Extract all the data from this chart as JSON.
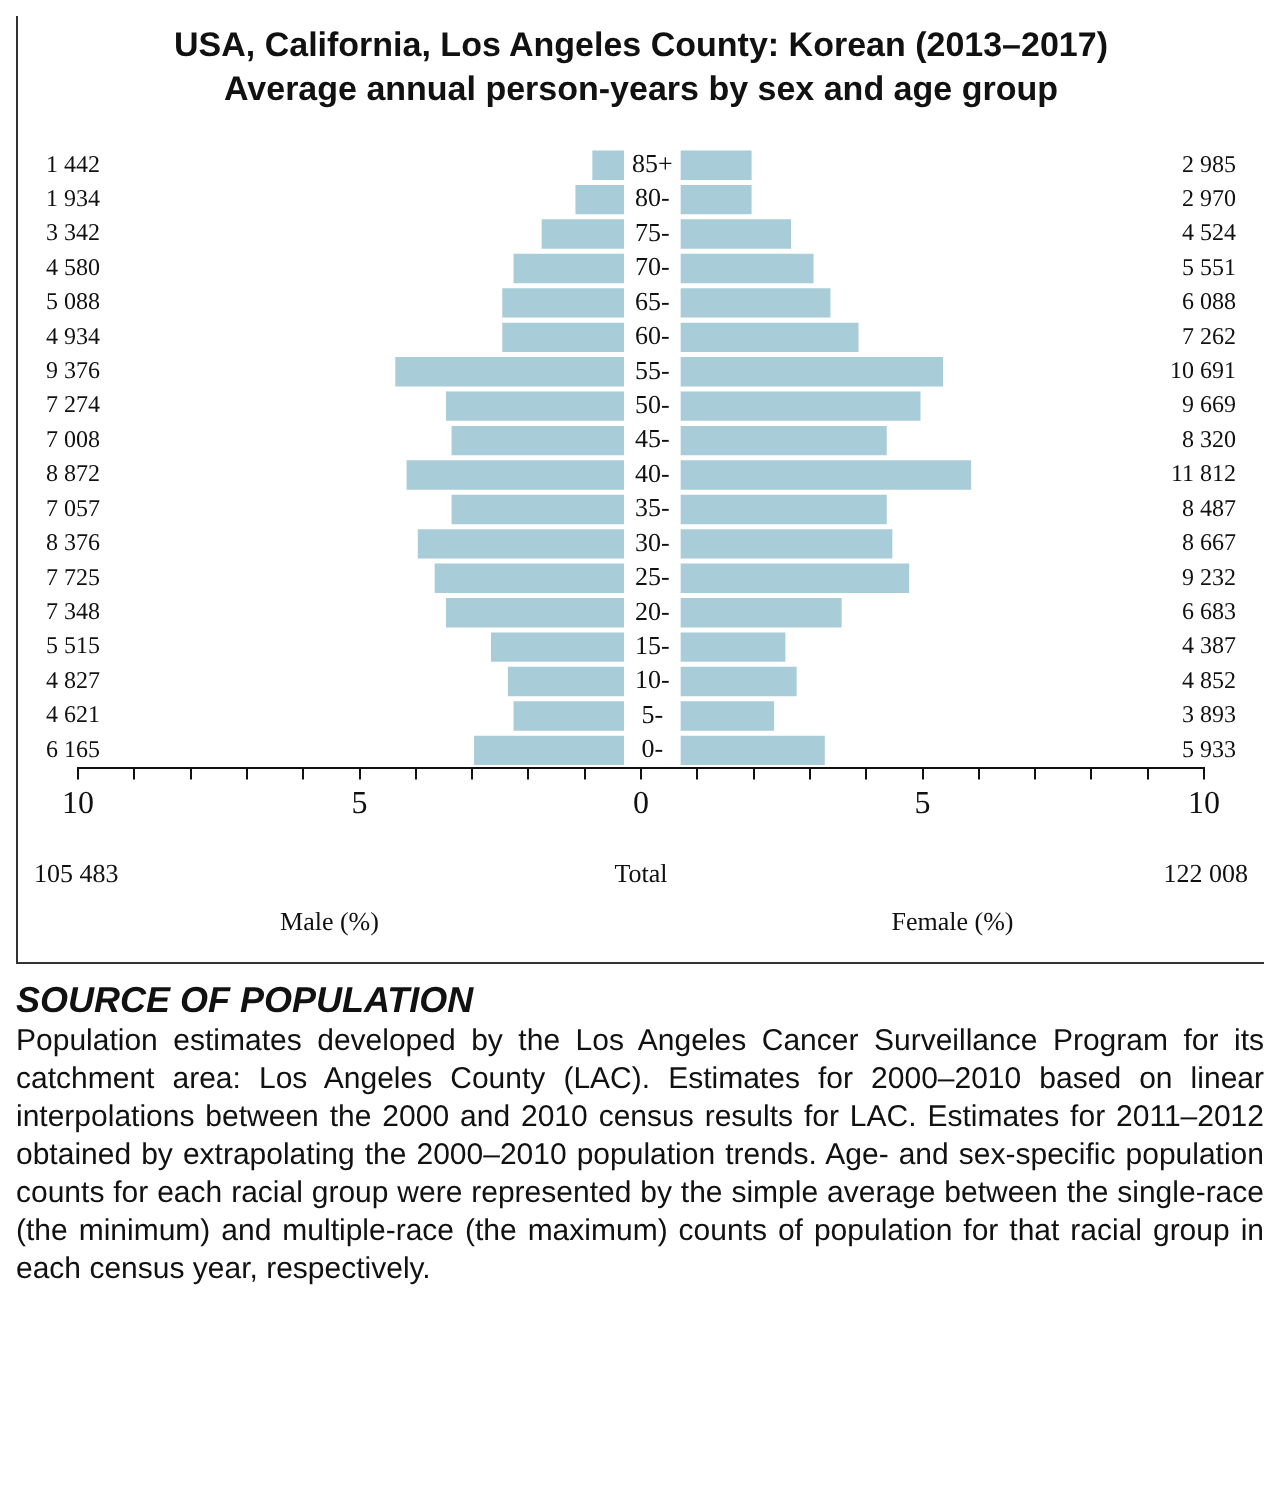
{
  "chart_data": {
    "type": "bar",
    "orientation": "horizontal",
    "title": "USA, California, Los Angeles County: Korean (2013–2017)",
    "subtitle": "Average annual person-years by sex and age group",
    "categories": [
      "85+",
      "80-",
      "75-",
      "70-",
      "65-",
      "60-",
      "55-",
      "50-",
      "45-",
      "40-",
      "35-",
      "30-",
      "25-",
      "20-",
      "15-",
      "10-",
      "5-",
      "0-"
    ],
    "series": [
      {
        "color": "#a8ccd8",
        "base": [
          -0.3,
          -0.3,
          -0.3,
          -0.3,
          -0.3,
          -0.3,
          -0.3,
          -0.3,
          -0.3,
          -0.3,
          -0.3,
          -0.3,
          -0.3,
          -0.3,
          -0.3,
          -0.3,
          -0.3,
          -0.3
        ],
        "values": [
          -0.6,
          -0.9,
          -1.5,
          -2.0,
          -2.2,
          -2.2,
          -4.1,
          -3.2,
          -3.1,
          -3.9,
          -3.1,
          -3.7,
          -3.4,
          -3.2,
          -2.4,
          -2.1,
          -2.0,
          -2.7
        ]
      },
      {
        "color": "#a8ccd8",
        "base": [
          0.7,
          0.7,
          0.7,
          0.7,
          0.7,
          0.7,
          0.7,
          0.7,
          0.7,
          0.7,
          0.7,
          0.7,
          0.7,
          0.7,
          0.7,
          0.7,
          0.7,
          0.7
        ],
        "values": [
          1.3,
          1.3,
          2.0,
          2.4,
          2.7,
          3.2,
          4.7,
          4.3,
          3.7,
          5.2,
          3.7,
          3.8,
          4.1,
          2.9,
          1.9,
          2.1,
          1.7,
          2.6
        ]
      }
    ],
    "xlim": [
      -10,
      10
    ],
    "xticks": [
      {
        "value": -10,
        "label": "10"
      },
      {
        "value": -9,
        "label": null
      },
      {
        "value": -8,
        "label": null
      },
      {
        "value": -7,
        "label": null
      },
      {
        "value": -6,
        "label": null
      },
      {
        "value": -5,
        "label": "5"
      },
      {
        "value": -4,
        "label": null
      },
      {
        "value": -3,
        "label": null
      },
      {
        "value": -2,
        "label": null
      },
      {
        "value": -1,
        "label": null
      },
      0,
      {
        "value": 1,
        "label": null
      },
      {
        "value": 2,
        "label": null
      },
      {
        "value": 3,
        "label": null
      },
      {
        "value": 4,
        "label": null
      },
      5,
      {
        "value": 6,
        "label": null
      },
      {
        "value": 7,
        "label": null
      },
      {
        "value": 8,
        "label": null
      },
      {
        "value": 9,
        "label": null
      },
      10
    ],
    "annotations": [
      "1 442",
      "1 934",
      "3 342",
      "4 580",
      "5 088",
      "4 934",
      "9 376",
      "7 274",
      "7 008",
      "8 872",
      "7 057",
      "8 376",
      "7 725",
      "7 348",
      "5 515",
      "4 827",
      "4 621",
      "6 165",
      "2 985",
      "2 970",
      "4 524",
      "5 551",
      "6 088",
      "7 262",
      "10 691",
      "9 669",
      "8 320",
      "11 812",
      "8 487",
      "8 667",
      "9 232",
      "6 683",
      "4 387",
      "4 852",
      "3 893",
      "5 933",
      "105 483",
      "Total",
      "122 008",
      "Male (%)",
      "Female (%)",
      "SOURCE OF POPULATION",
      "Population estimates developed by the Los Angeles Cancer Surveillance Program for its catchment area: Los Angeles County (LAC). Estimates for 2000–2010 based on linear interpolations between the 2000 and 2010 census results for LAC. Estimates for 2011–2012 obtained by extrapolating the 2000–2010 population trends. Age- and sex-specific population counts for each racial group were represented by the simple average between the single-race (the minimum) and multiple-race (the maximum) counts of population for that racial group in each census year, respectively."
    ]
  }
}
